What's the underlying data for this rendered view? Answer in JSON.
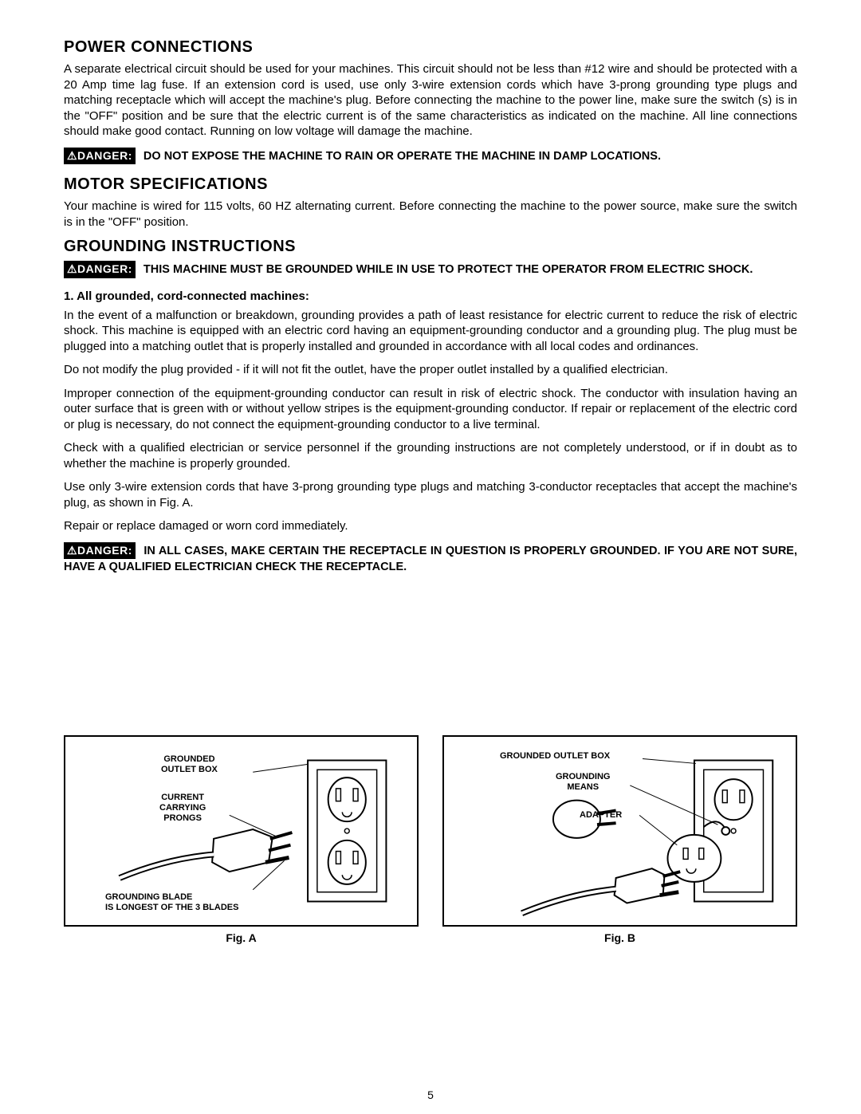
{
  "sections": {
    "power": {
      "heading": "POWER CONNECTIONS",
      "body": "A separate electrical circuit should be used for your machines. This circuit should not be less than #12 wire and should be protected with a 20 Amp time lag fuse. If an extension cord is used, use only 3-wire extension cords which have 3-prong grounding type plugs and matching receptacle which will accept the machine's plug. Before connecting the machine to the power line, make sure the switch (s) is in the \"OFF\" position and be sure that the electric current is of the same characteristics as indicated on the machine. All line connections should make good contact. Running on low voltage will damage the machine.",
      "danger_label": "⚠DANGER:",
      "danger_text": "DO NOT EXPOSE THE MACHINE TO RAIN OR OPERATE THE MACHINE IN DAMP LOCATIONS."
    },
    "motor": {
      "heading": "MOTOR SPECIFICATIONS",
      "body": "Your machine is wired for 115 volts, 60 HZ alternating current. Before connecting the machine to the power source, make sure the switch is in the \"OFF\" position."
    },
    "grounding": {
      "heading": "GROUNDING INSTRUCTIONS",
      "danger1_label": "⚠DANGER:",
      "danger1_text": "THIS MACHINE MUST BE GROUNDED WHILE IN USE TO PROTECT THE OPERATOR FROM ELECTRIC SHOCK.",
      "item1": "1.  All grounded, cord-connected machines:",
      "para1": "In the event of a malfunction or breakdown, grounding provides a path of least resistance for electric current to reduce the risk of electric shock. This machine is equipped with an electric cord having an equipment-grounding conductor and a grounding plug. The plug must be plugged into a matching outlet that is properly installed and grounded in accordance with all local codes and ordinances.",
      "para2": "Do not modify the plug provided - if it will not fit the outlet, have the proper outlet installed by a qualified electrician.",
      "para3": "Improper connection of the equipment-grounding conductor can result in risk of electric shock. The conductor with insulation having an outer surface that is green with or without yellow stripes is the equipment-grounding conductor. If repair or replacement of the electric cord or plug is necessary, do not connect the equipment-grounding conductor to a live terminal.",
      "para4": "Check with a qualified electrician or service personnel if the grounding instructions are not completely understood, or if in doubt as to whether the machine is properly grounded.",
      "para5": "Use only 3-wire extension cords that have 3-prong grounding type plugs and matching 3-conductor receptacles that accept the machine's plug, as shown in Fig. A.",
      "para6": "Repair or replace damaged or worn cord immediately.",
      "danger2_label": "⚠DANGER:",
      "danger2_text": "IN ALL CASES, MAKE CERTAIN THE RECEPTACLE IN QUESTION IS PROPERLY GROUNDED. IF YOU ARE NOT SURE, HAVE A QUALIFIED ELECTRICIAN CHECK THE RECEPTACLE."
    }
  },
  "figures": {
    "a": {
      "caption": "Fig. A",
      "labels": {
        "outlet_box": "GROUNDED\nOUTLET BOX",
        "prongs": "CURRENT\nCARRYING\nPRONGS",
        "blade": "GROUNDING BLADE\nIS LONGEST OF THE 3 BLADES"
      }
    },
    "b": {
      "caption": "Fig. B",
      "labels": {
        "outlet_box": "GROUNDED OUTLET BOX",
        "means": "GROUNDING\nMEANS",
        "adapter": "ADAPTER"
      }
    }
  },
  "page_number": "5"
}
